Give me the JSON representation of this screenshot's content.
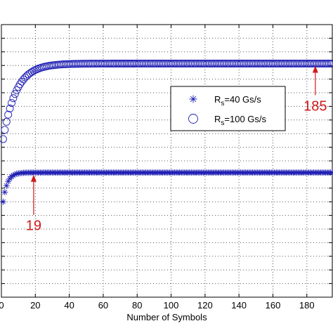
{
  "chart_data": {
    "type": "scatter",
    "title": "",
    "xlabel": "Number of Symbols",
    "ylabel": "",
    "xlim": [
      0,
      195
    ],
    "ylim": [
      0,
      1
    ],
    "x_ticks": [
      0,
      20,
      40,
      60,
      80,
      100,
      120,
      140,
      160,
      180
    ],
    "x_tick_labels": [
      "0",
      "20",
      "40",
      "60",
      "80",
      "100",
      "120",
      "140",
      "160",
      "180"
    ],
    "grid": true,
    "legend_position": "right",
    "colors": {
      "marker": "#1f1fb4",
      "annotation": "#d01919"
    },
    "series": [
      {
        "name_main": "R",
        "name_sub": "s",
        "name_rest": "=40 Gs/s",
        "marker": "asterisk",
        "x_start": 1,
        "x_end": 195,
        "x_step": 1,
        "y_plateau": 0.457,
        "y_start": 0.35,
        "settle_symbols": 19,
        "rise_sharpness": 0.4
      },
      {
        "name_main": "R",
        "name_sub": "s",
        "name_rest": "=100 Gs/s",
        "marker": "circle",
        "x_start": 1,
        "x_end": 195,
        "x_step": 1,
        "y_plateau": 0.857,
        "y_start": 0.58,
        "settle_symbols": 185,
        "rise_sharpness": 0.13
      }
    ],
    "annotations": [
      {
        "text": "19",
        "x": 19,
        "series": 0
      },
      {
        "text": "185",
        "x": 185,
        "series": 1
      }
    ]
  }
}
